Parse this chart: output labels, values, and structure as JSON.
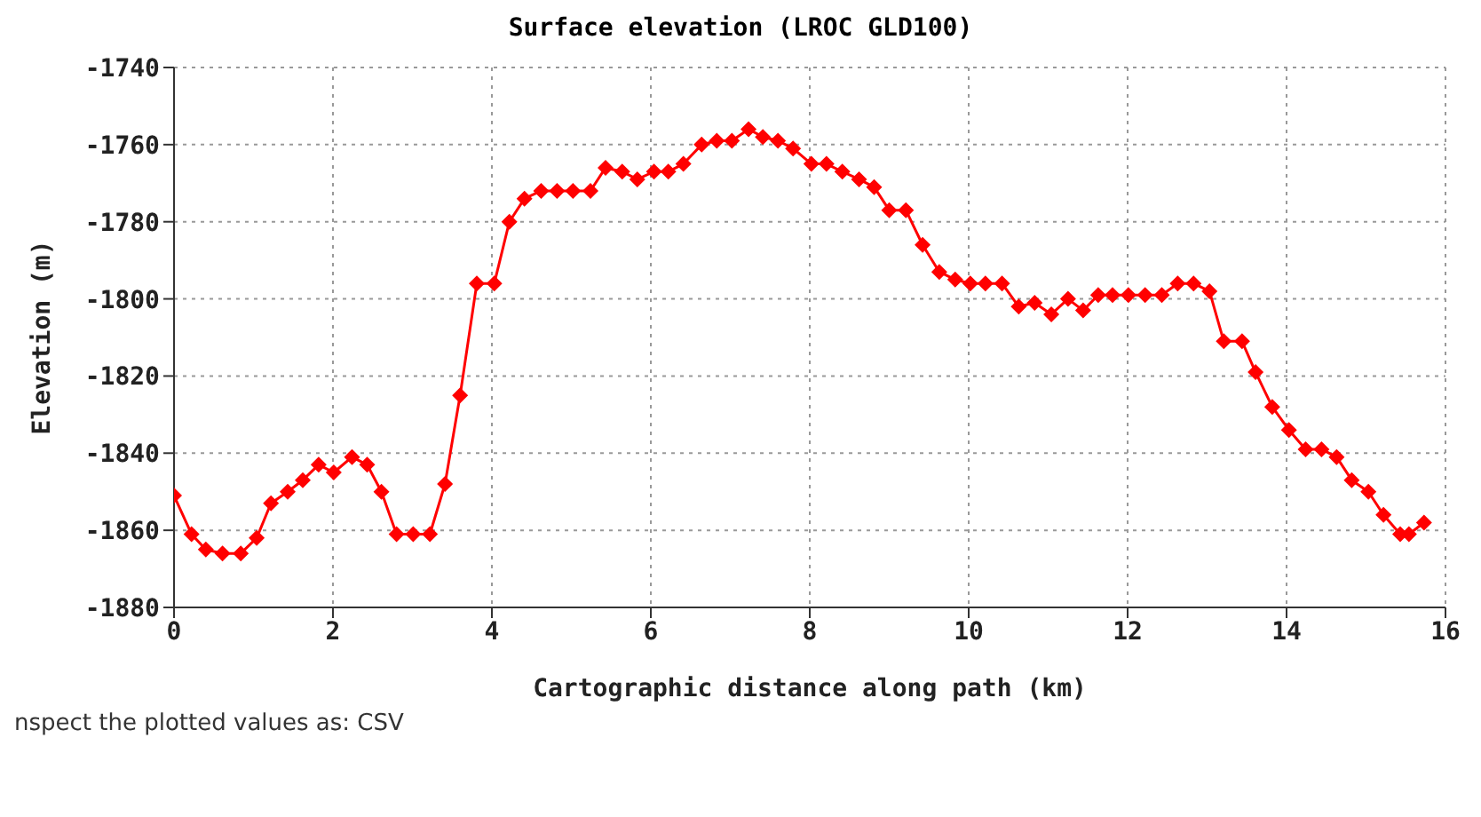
{
  "chart_data": {
    "type": "line",
    "title": "Surface elevation (LROC GLD100)",
    "xlabel": "Cartographic distance along path (km)",
    "ylabel": "Elevation (m)",
    "annotations": [
      "nspect the plotted values as: CSV"
    ],
    "x": [
      0,
      0.22,
      0.4,
      0.61,
      0.84,
      1.04,
      1.22,
      1.43,
      1.62,
      1.82,
      2.01,
      2.24,
      2.43,
      2.61,
      2.8,
      3.01,
      3.22,
      3.41,
      3.6,
      3.81,
      4.03,
      4.22,
      4.41,
      4.62,
      4.82,
      5.02,
      5.24,
      5.43,
      5.64,
      5.83,
      6.04,
      6.22,
      6.41,
      6.64,
      6.83,
      7.02,
      7.23,
      7.41,
      7.6,
      7.79,
      8.02,
      8.21,
      8.41,
      8.62,
      8.81,
      9.0,
      9.21,
      9.42,
      9.63,
      9.83,
      10.02,
      10.21,
      10.42,
      10.63,
      10.83,
      11.04,
      11.25,
      11.44,
      11.63,
      11.81,
      12.01,
      12.22,
      12.43,
      12.63,
      12.83,
      13.03,
      13.21,
      13.44,
      13.61,
      13.82,
      14.03,
      14.24,
      14.44,
      14.63,
      14.82,
      15.03,
      15.22,
      15.43,
      15.54,
      15.73
    ],
    "series": [
      {
        "color": "#ff0000",
        "values": [
          -1851,
          -1861,
          -1865,
          -1866,
          -1866,
          -1862,
          -1853,
          -1850,
          -1847,
          -1843,
          -1845,
          -1841,
          -1843,
          -1850,
          -1861,
          -1861,
          -1861,
          -1848,
          -1825,
          -1796,
          -1796,
          -1780,
          -1774,
          -1772,
          -1772,
          -1772,
          -1772,
          -1766,
          -1767,
          -1769,
          -1767,
          -1767,
          -1765,
          -1760,
          -1759,
          -1759,
          -1756,
          -1758,
          -1759,
          -1761,
          -1765,
          -1765,
          -1767,
          -1769,
          -1771,
          -1777,
          -1777,
          -1786,
          -1793,
          -1795,
          -1796,
          -1796,
          -1796,
          -1802,
          -1801,
          -1804,
          -1800,
          -1803,
          -1799,
          -1799,
          -1799,
          -1799,
          -1799,
          -1796,
          -1796,
          -1798,
          -1811,
          -1811,
          -1819,
          -1828,
          -1834,
          -1839,
          -1839,
          -1841,
          -1847,
          -1850,
          -1856,
          -1861,
          -1861,
          -1858
        ]
      }
    ],
    "xlim": [
      0,
      16
    ],
    "xticks": [
      0,
      2,
      4,
      6,
      8,
      10,
      12,
      14,
      16
    ],
    "ylim": [
      -1880,
      -1740
    ],
    "yticks": [
      -1880,
      -1860,
      -1840,
      -1820,
      -1800,
      -1780,
      -1760,
      -1740
    ],
    "grid": true,
    "marker": "diamond",
    "line_style": "solid"
  }
}
